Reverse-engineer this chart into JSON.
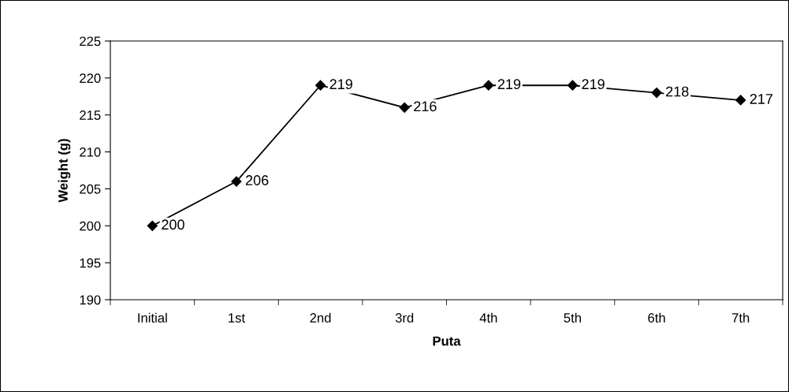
{
  "chart_data": {
    "type": "line",
    "xlabel": "Puta",
    "ylabel": "Weight (g)",
    "categories": [
      "Initial",
      "1st",
      "2nd",
      "3rd",
      "4th",
      "5th",
      "6th",
      "7th"
    ],
    "series": [
      {
        "color": "#000000",
        "values": [
          200,
          206,
          219,
          216,
          219,
          219,
          218,
          217
        ]
      }
    ],
    "ylim": [
      190,
      225
    ],
    "yticks": [
      190,
      195,
      200,
      205,
      210,
      215,
      220,
      225
    ],
    "marker": "diamond",
    "line_style": "solid",
    "data_labels": true,
    "legend": false,
    "grid": false
  }
}
